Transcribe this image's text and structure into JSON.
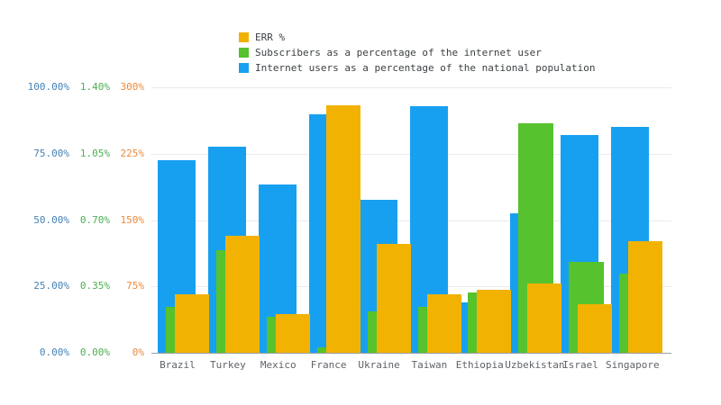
{
  "chart_data": {
    "type": "bar",
    "title": "",
    "xlabel": "",
    "ylabel": "",
    "grid": true,
    "legend_position": "top",
    "categories": [
      "Brazil",
      "Turkey",
      "Mexico",
      "France",
      "Ukraine",
      "Taiwan",
      "Ethiopia",
      "Uzbekistan",
      "Israel",
      "Singapore"
    ],
    "series": [
      {
        "name": "ERR %",
        "color": "#f2b202",
        "tick_color": "#ed8936",
        "axis_max": 300,
        "ticks": [
          "0%",
          "75%",
          "150%",
          "225%",
          "300%"
        ],
        "values": [
          66,
          132,
          44,
          280,
          123,
          66,
          71,
          78,
          55,
          126
        ]
      },
      {
        "name": "Subscribers as a percentage of the internet user",
        "color": "#56c22d",
        "tick_color": "#4caf50",
        "axis_max": 1.4,
        "ticks": [
          "0.00%",
          "0.35%",
          "0.70%",
          "1.05%",
          "1.40%"
        ],
        "values": [
          0.24,
          0.54,
          0.19,
          0.03,
          0.22,
          0.24,
          0.32,
          1.21,
          0.48,
          0.42
        ]
      },
      {
        "name": "Internet users as a percentage of the national population",
        "color": "#18a0f0",
        "tick_color": "#4682b4",
        "axis_max": 100,
        "ticks": [
          "0.00%",
          "25.00%",
          "50.00%",
          "75.00%",
          "100.00%"
        ],
        "values": [
          72.5,
          77.5,
          63.5,
          90,
          57.5,
          93,
          19,
          52.5,
          82,
          85
        ]
      }
    ]
  }
}
